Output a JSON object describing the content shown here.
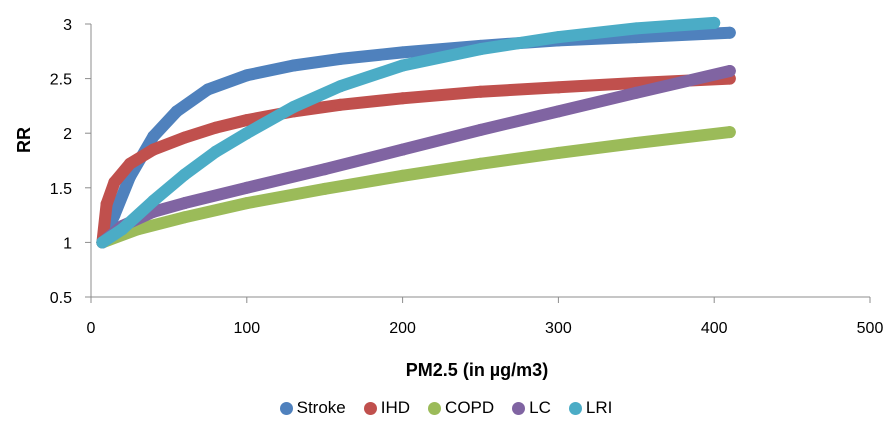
{
  "chart_data": {
    "type": "scatter",
    "xlabel": "PM2.5 (in µg/m3)",
    "ylabel": "RR",
    "xlim": [
      0,
      500
    ],
    "ylim": [
      0.5,
      3
    ],
    "xticks": [
      "0",
      "100",
      "200",
      "300",
      "400",
      "500"
    ],
    "yticks": [
      "0.5",
      "1",
      "1.5",
      "2",
      "2.5",
      "3"
    ],
    "legend_position": "bottom",
    "grid": false,
    "series": [
      {
        "name": "Stroke",
        "color": "#4f81bd",
        "x": [
          7.3,
          15,
          25,
          40,
          55,
          75,
          100,
          130,
          160,
          200,
          250,
          300,
          350,
          410
        ],
        "y": [
          1.0,
          1.25,
          1.6,
          1.97,
          2.2,
          2.4,
          2.53,
          2.62,
          2.68,
          2.74,
          2.8,
          2.85,
          2.88,
          2.92
        ]
      },
      {
        "name": "IHD",
        "color": "#c0504d",
        "x": [
          7.3,
          10,
          15,
          25,
          40,
          60,
          80,
          100,
          130,
          160,
          200,
          250,
          300,
          350,
          410
        ],
        "y": [
          1.0,
          1.35,
          1.55,
          1.72,
          1.85,
          1.96,
          2.05,
          2.12,
          2.2,
          2.26,
          2.32,
          2.38,
          2.42,
          2.46,
          2.5
        ]
      },
      {
        "name": "COPD",
        "color": "#9bbb59",
        "x": [
          7.3,
          30,
          60,
          100,
          150,
          200,
          250,
          300,
          350,
          410
        ],
        "y": [
          1.0,
          1.12,
          1.23,
          1.36,
          1.49,
          1.61,
          1.72,
          1.82,
          1.91,
          2.01
        ]
      },
      {
        "name": "LC",
        "color": "#8064a2",
        "x": [
          7.3,
          20,
          40,
          60,
          100,
          150,
          200,
          250,
          300,
          350,
          410
        ],
        "y": [
          1.0,
          1.15,
          1.28,
          1.36,
          1.5,
          1.67,
          1.85,
          2.03,
          2.2,
          2.37,
          2.57
        ]
      },
      {
        "name": "LRI",
        "color": "#4bacc6",
        "x": [
          7.3,
          20,
          40,
          60,
          80,
          100,
          130,
          160,
          200,
          250,
          300,
          350,
          400
        ],
        "y": [
          1.0,
          1.12,
          1.38,
          1.62,
          1.83,
          2.0,
          2.24,
          2.43,
          2.62,
          2.77,
          2.88,
          2.96,
          3.01
        ]
      }
    ]
  }
}
